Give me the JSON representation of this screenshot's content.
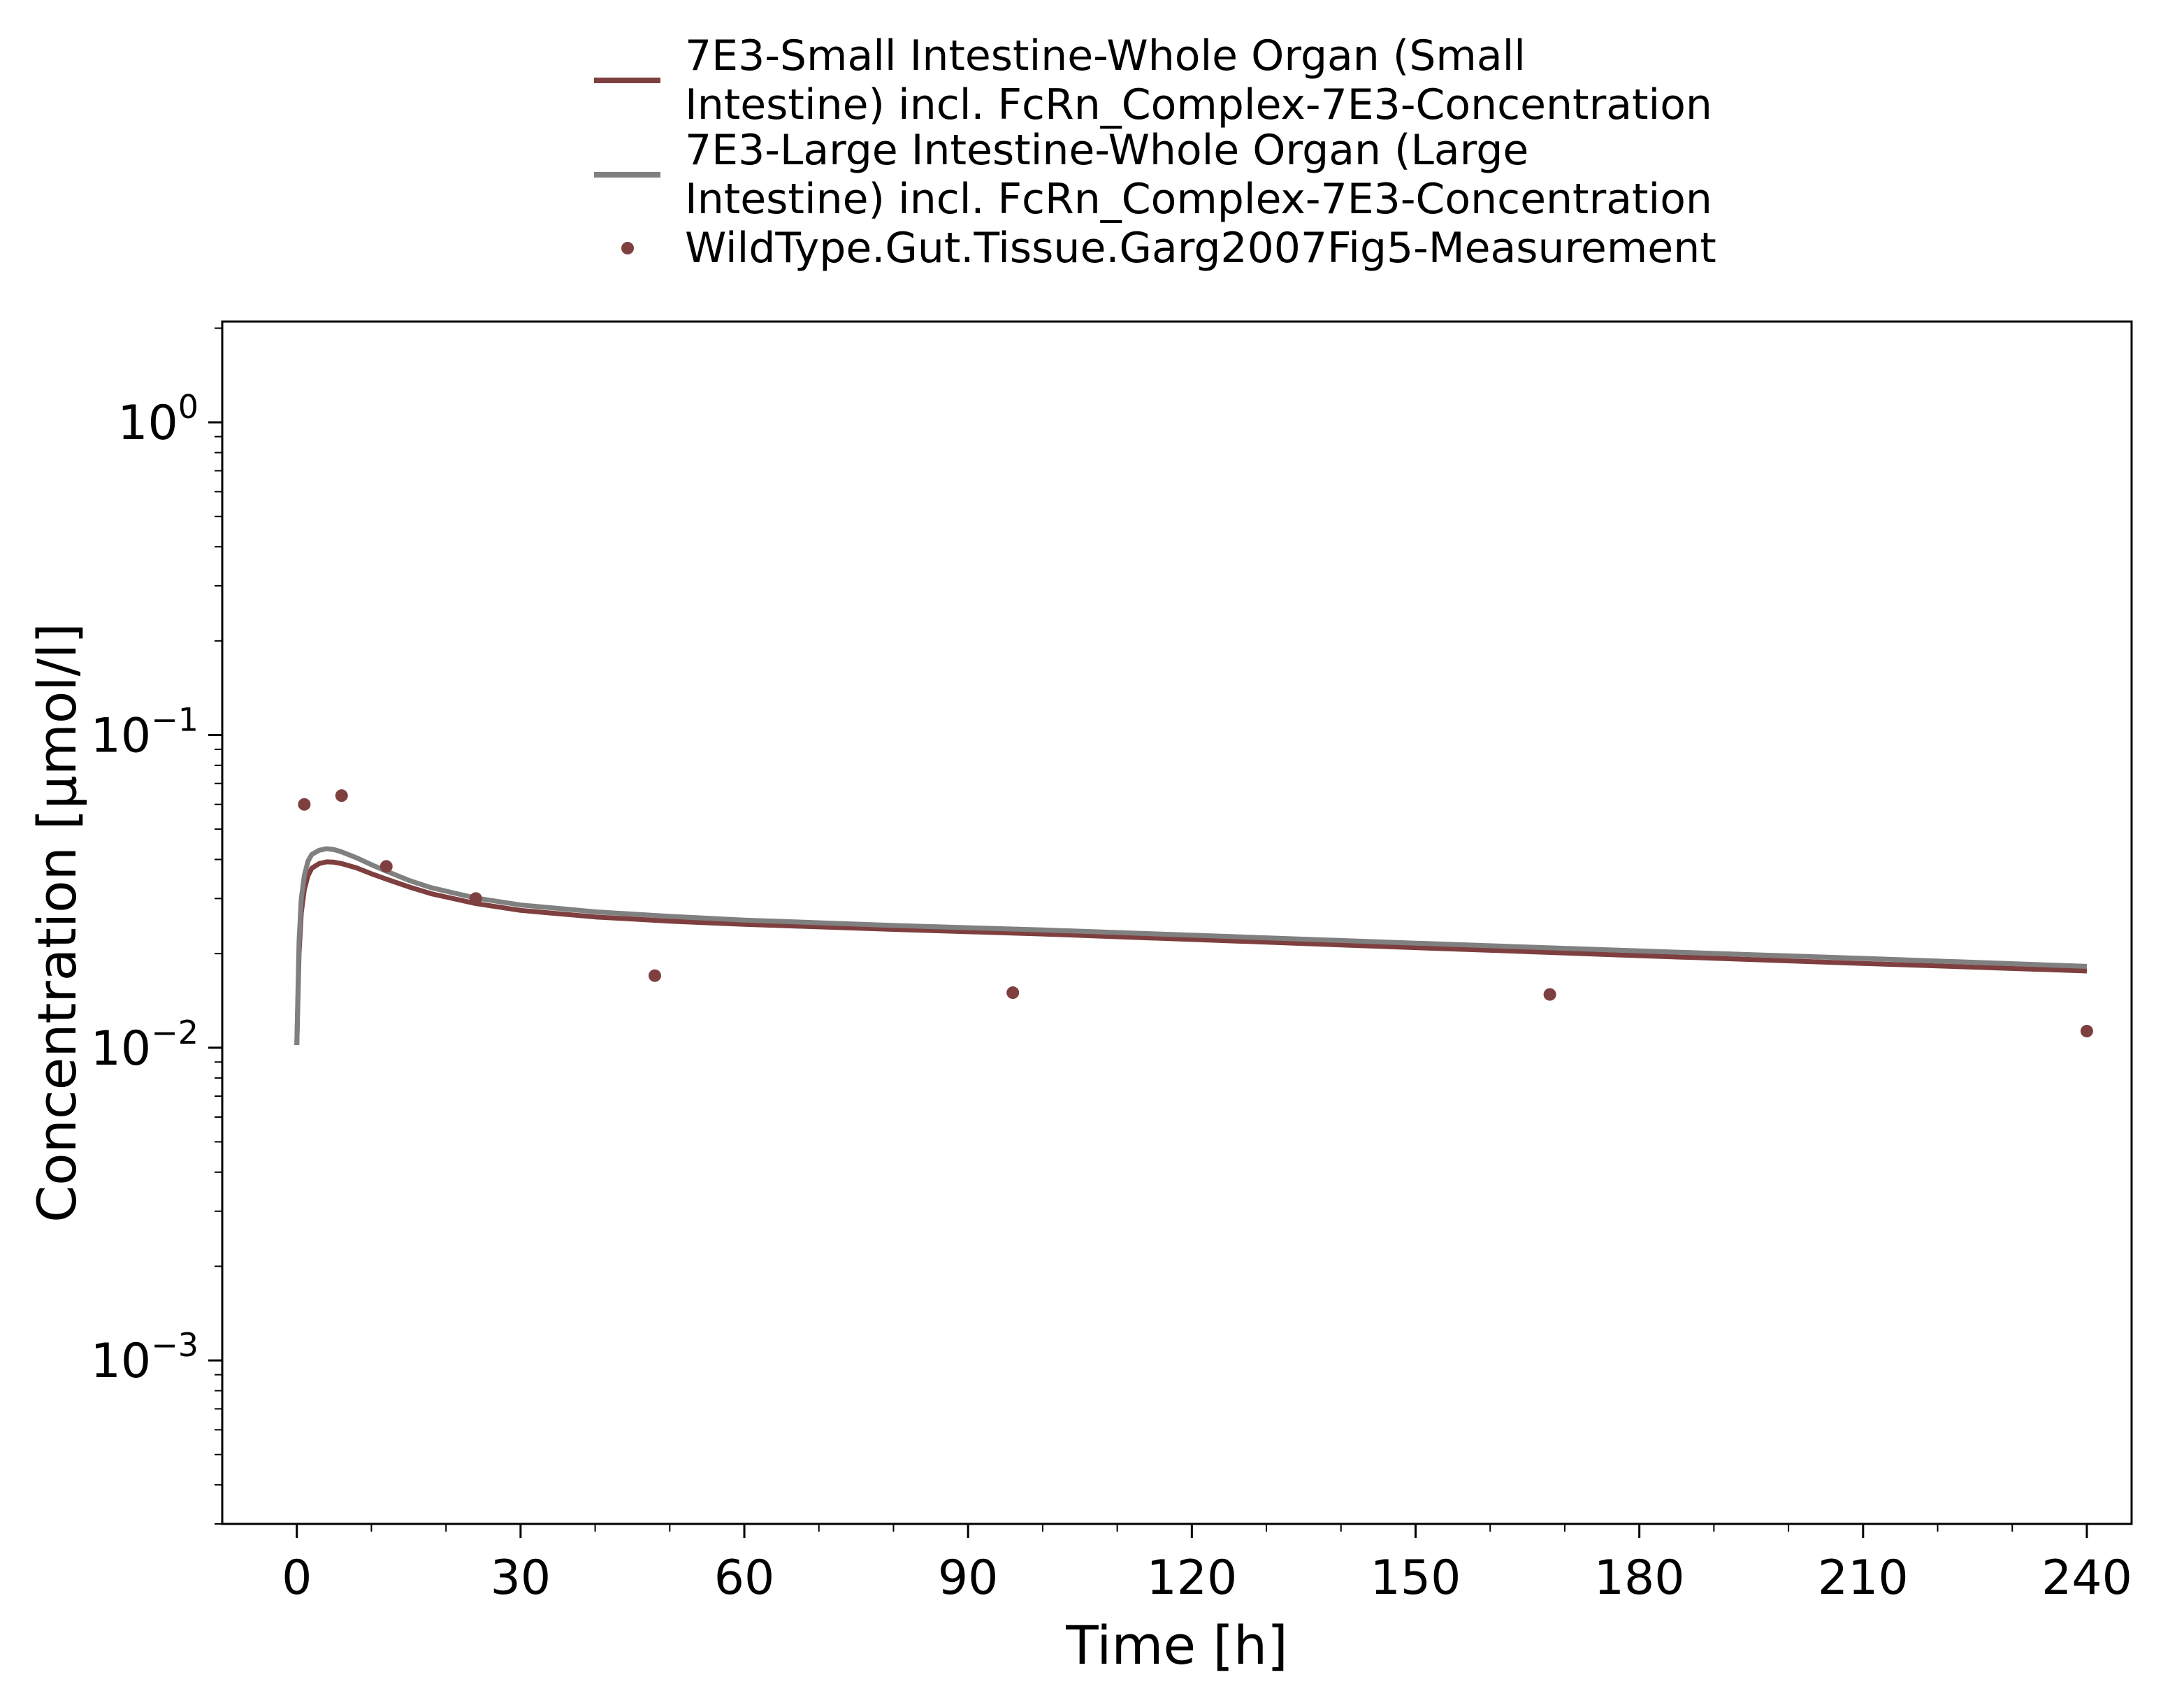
{
  "chart_data": {
    "type": "line",
    "xlabel": "Time [h]",
    "ylabel": "Concentration [µmol/l]",
    "xlim": [
      -10,
      246
    ],
    "ylim": [
      0.0003,
      2.1
    ],
    "yscale": "log",
    "grid": false,
    "legend_position": "top-center",
    "x_ticks": [
      0,
      30,
      60,
      90,
      120,
      150,
      180,
      210,
      240
    ],
    "x_tick_labels": [
      "0",
      "30",
      "60",
      "90",
      "120",
      "150",
      "180",
      "210",
      "240"
    ],
    "y_ticks": [
      {
        "value": 1,
        "base": "10",
        "exp": "0"
      },
      {
        "value": 0.1,
        "base": "10",
        "exp": "−1"
      },
      {
        "value": 0.01,
        "base": "10",
        "exp": "−2"
      },
      {
        "value": 0.001,
        "base": "10",
        "exp": "−3"
      }
    ],
    "series": [
      {
        "name": "7E3-Small Intestine-Whole Organ (Small Intestine) incl. FcRn_Complex-7E3-Concentration",
        "legend_lines": [
          "7E3-Small Intestine-Whole Organ (Small",
          "Intestine) incl. FcRn_Complex-7E3-Concentration"
        ],
        "kind": "line",
        "color": "#7f3f3f",
        "x": [
          0,
          0.3,
          0.6,
          1,
          1.5,
          2,
          3,
          4,
          5,
          6,
          8,
          10,
          12,
          15,
          18,
          24,
          30,
          40,
          50,
          60,
          80,
          100,
          120,
          150,
          180,
          210,
          240
        ],
        "y": [
          0.0102,
          0.02,
          0.027,
          0.032,
          0.0355,
          0.0375,
          0.0388,
          0.0393,
          0.0392,
          0.0388,
          0.0376,
          0.036,
          0.0346,
          0.0327,
          0.0311,
          0.0289,
          0.0275,
          0.0262,
          0.0254,
          0.0248,
          0.0239,
          0.0231,
          0.0222,
          0.0209,
          0.0197,
          0.0186,
          0.0176
        ]
      },
      {
        "name": "7E3-Large Intestine-Whole Organ (Large Intestine) incl. FcRn_Complex-7E3-Concentration",
        "legend_lines": [
          "7E3-Large Intestine-Whole Organ (Large",
          "Intestine) incl. FcRn_Complex-7E3-Concentration"
        ],
        "kind": "line",
        "color": "#808080",
        "x": [
          0,
          0.3,
          0.6,
          1,
          1.5,
          2,
          3,
          4,
          5,
          6,
          8,
          10,
          12,
          15,
          18,
          24,
          30,
          40,
          50,
          60,
          80,
          100,
          120,
          150,
          180,
          210,
          240
        ],
        "y": [
          0.0102,
          0.022,
          0.03,
          0.0355,
          0.0395,
          0.0415,
          0.0428,
          0.0433,
          0.043,
          0.0423,
          0.0405,
          0.0385,
          0.0367,
          0.0343,
          0.0325,
          0.0301,
          0.0286,
          0.0272,
          0.0263,
          0.0256,
          0.0246,
          0.0238,
          0.0229,
          0.0216,
          0.0204,
          0.0193,
          0.0182
        ]
      },
      {
        "name": "WildType.Gut.Tissue.Garg2007Fig5-Measurement",
        "legend_lines": [
          "WildType.Gut.Tissue.Garg2007Fig5-Measurement"
        ],
        "kind": "scatter",
        "color": "#7f3f3f",
        "x": [
          1,
          6,
          12,
          24,
          48,
          96,
          168,
          240
        ],
        "y": [
          0.06,
          0.064,
          0.038,
          0.03,
          0.017,
          0.015,
          0.0148,
          0.0113
        ]
      }
    ]
  }
}
